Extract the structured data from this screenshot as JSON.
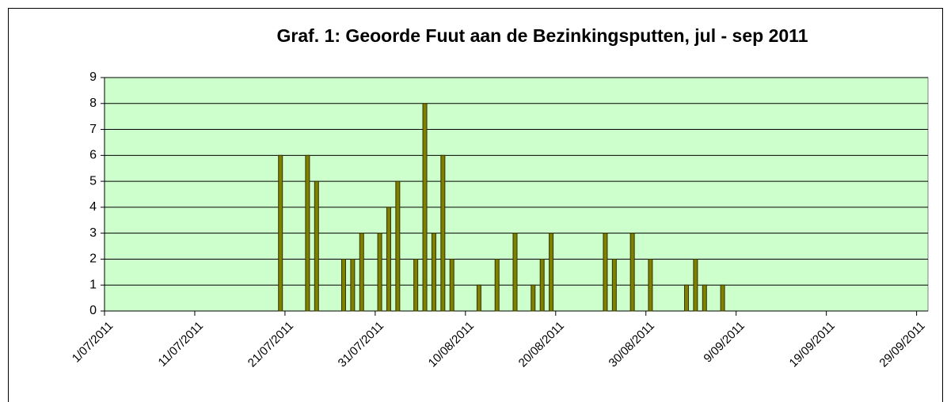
{
  "chart_data": {
    "type": "bar",
    "title": "Graf. 1: Geoorde Fuut aan de Bezinkingsputten, jul - sep 2011",
    "x": [
      "2011-07-20",
      "2011-07-23",
      "2011-07-24",
      "2011-07-27",
      "2011-07-28",
      "2011-07-29",
      "2011-07-31",
      "2011-08-01",
      "2011-08-02",
      "2011-08-04",
      "2011-08-05",
      "2011-08-06",
      "2011-08-07",
      "2011-08-08",
      "2011-08-11",
      "2011-08-13",
      "2011-08-15",
      "2011-08-17",
      "2011-08-18",
      "2011-08-19",
      "2011-08-25",
      "2011-08-26",
      "2011-08-28",
      "2011-08-30",
      "2011-09-03",
      "2011-09-04",
      "2011-09-05",
      "2011-09-07"
    ],
    "values": [
      6,
      6,
      5,
      2,
      2,
      3,
      3,
      4,
      5,
      2,
      8,
      3,
      6,
      2,
      1,
      2,
      3,
      1,
      2,
      3,
      3,
      2,
      3,
      2,
      1,
      2,
      1,
      1
    ],
    "color": "#808000",
    "ylim": [
      0,
      9
    ],
    "yticks": [
      0,
      1,
      2,
      3,
      4,
      5,
      6,
      7,
      8,
      9
    ],
    "xlim": [
      "2011-07-01",
      "2011-09-30"
    ],
    "xticks": [
      {
        "value": "2011-07-01",
        "label": "1/07/2011"
      },
      {
        "value": "2011-07-11",
        "label": "11/07/2011"
      },
      {
        "value": "2011-07-21",
        "label": "21/07/2011"
      },
      {
        "value": "2011-07-31",
        "label": "31/07/2011"
      },
      {
        "value": "2011-08-10",
        "label": "10/08/2011"
      },
      {
        "value": "2011-08-20",
        "label": "20/08/2011"
      },
      {
        "value": "2011-08-30",
        "label": "30/08/2011"
      },
      {
        "value": "2011-09-09",
        "label": "9/09/2011"
      },
      {
        "value": "2011-09-19",
        "label": "19/09/2011"
      },
      {
        "value": "2011-09-29",
        "label": "29/09/2011"
      }
    ],
    "grid": true,
    "plot_background": "#ccffcc"
  }
}
